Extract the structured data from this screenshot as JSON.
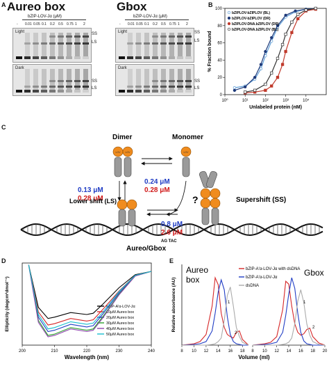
{
  "panelA": {
    "letter": "A",
    "aureo_title": "Aureo box",
    "gbox_title": "Gbox",
    "conc_label": "bZIP-LOV-Jα (μM)",
    "lanes": [
      "-",
      "0.01",
      "0.05",
      "0.1",
      "0.2",
      "0.5",
      "0.75",
      "1",
      "2"
    ],
    "light": "Light",
    "dark": "Dark",
    "ss": "SS",
    "ls": "LS"
  },
  "panelB": {
    "letter": "B",
    "chart_data": {
      "type": "scatter",
      "xlabel": "Unlabeled protein (nM)",
      "ylabel": "% Fraction bound",
      "xscale": "log",
      "xlim": [
        1,
        100000
      ],
      "ylim": [
        0,
        100
      ],
      "xticks": [
        "10⁰",
        "10¹",
        "10²",
        "10³",
        "10⁴"
      ],
      "yticks": [
        "0",
        "20",
        "40",
        "60",
        "80",
        "100"
      ],
      "legend_placement": "top-left",
      "series": [
        {
          "name": "bZIPLOV-bZIPLOV (BL)",
          "color": "#5b9bd5",
          "marker": "open-circle",
          "x": [
            3,
            10,
            30,
            60,
            100,
            200,
            400,
            1000,
            3000,
            10000,
            30000
          ],
          "y": [
            8,
            10,
            18,
            30,
            45,
            62,
            78,
            90,
            96,
            99,
            100
          ]
        },
        {
          "name": "bZIPLOV-bZIPLOV (DR)",
          "color": "#1f3a7a",
          "marker": "filled-circle",
          "x": [
            3,
            10,
            30,
            60,
            100,
            200,
            400,
            1000,
            3000,
            10000,
            30000
          ],
          "y": [
            5,
            9,
            20,
            35,
            50,
            66,
            80,
            92,
            97,
            99,
            100
          ]
        },
        {
          "name": "bZIPLOV-DNA.bZIPLOV (DR)",
          "color": "#c0392b",
          "marker": "filled-square",
          "x": [
            10,
            30,
            100,
            200,
            400,
            700,
            1000,
            2000,
            4000,
            10000,
            30000
          ],
          "y": [
            2,
            3,
            5,
            10,
            20,
            35,
            50,
            72,
            88,
            97,
            99
          ]
        },
        {
          "name": "bZIPLOV-DNA.bZIPLOV (BL)",
          "color": "#333333",
          "marker": "open-square",
          "x": [
            10,
            30,
            100,
            200,
            400,
            700,
            1000,
            2000,
            4000,
            10000,
            30000
          ],
          "y": [
            3,
            5,
            12,
            25,
            42,
            58,
            70,
            84,
            93,
            98,
            100
          ]
        }
      ]
    }
  },
  "panelC": {
    "letter": "C",
    "dimer": "Dimer",
    "monomer": "Monomer",
    "k1_blue": "0.24 μM",
    "k1_red": "0.28 μM",
    "k2_blue": "0.13 μM",
    "k2_red": "0.28 μM",
    "k3_blue": "0.8 μM",
    "k3_red": "2.6 μM",
    "lower_shift": "Lower shift (LS)",
    "supershift": "Supershift (SS)",
    "question": "?",
    "dna_label": "Aureo/Gbox",
    "lov": "LOV",
    "bzip": "bZIP",
    "dna_seq": "AG TAC",
    "colors": {
      "blue": "#1f3cc4",
      "red": "#d01a1a",
      "lov": "#f08c1e"
    }
  },
  "panelD": {
    "letter": "D",
    "chart_data": {
      "type": "line",
      "xlabel": "Wavelength (nm)",
      "ylabel": "Ellipticity (degcm²dmol⁻¹)",
      "xlim": [
        200,
        240
      ],
      "xticks": [
        "200",
        "210",
        "220",
        "230",
        "240"
      ],
      "legend_placement": "bottom-right",
      "series": [
        {
          "name": "bZIP-A'α-LOV-Jα",
          "color": "#000000",
          "x": [
            202,
            205,
            208,
            210,
            215,
            220,
            222,
            225,
            230,
            235,
            240
          ],
          "y": [
            0.1,
            -0.55,
            -0.72,
            -0.7,
            -0.63,
            -0.66,
            -0.64,
            -0.5,
            -0.25,
            -0.05,
            0
          ]
        },
        {
          "name": "10μM Aureo box",
          "color": "#d62728",
          "x": [
            202,
            205,
            208,
            210,
            215,
            220,
            222,
            225,
            230,
            235,
            240
          ],
          "y": [
            0.1,
            -0.62,
            -0.82,
            -0.8,
            -0.72,
            -0.76,
            -0.74,
            -0.58,
            -0.3,
            -0.06,
            0
          ]
        },
        {
          "name": "20μM Aureo box",
          "color": "#1f3cc4",
          "x": [
            202,
            205,
            208,
            210,
            215,
            220,
            222,
            225,
            230,
            235,
            240
          ],
          "y": [
            0.1,
            -0.7,
            -0.92,
            -0.9,
            -0.81,
            -0.85,
            -0.83,
            -0.65,
            -0.33,
            -0.07,
            0
          ]
        },
        {
          "name": "30μM Aureo box",
          "color": "#2ca02c",
          "x": [
            202,
            205,
            208,
            210,
            215,
            220,
            222,
            225,
            230,
            235,
            240
          ],
          "y": [
            0.1,
            -0.75,
            -0.98,
            -0.96,
            -0.86,
            -0.9,
            -0.88,
            -0.69,
            -0.35,
            -0.07,
            0
          ]
        },
        {
          "name": "40μM Aureo box",
          "color": "#8e44ad",
          "x": [
            202,
            205,
            208,
            210,
            215,
            220,
            222,
            225,
            230,
            235,
            240
          ],
          "y": [
            0.1,
            -0.78,
            -1.0,
            -0.98,
            -0.88,
            -0.92,
            -0.9,
            -0.71,
            -0.36,
            -0.07,
            0
          ]
        },
        {
          "name": "50μM Aureo box",
          "color": "#17becf",
          "x": [
            202,
            205,
            208,
            210,
            215,
            220,
            222,
            225,
            230,
            235,
            240
          ],
          "y": [
            0.1,
            -0.66,
            -0.88,
            -0.86,
            -0.77,
            -0.81,
            -0.79,
            -0.62,
            -0.31,
            -0.06,
            0
          ]
        }
      ]
    }
  },
  "panelE": {
    "letter": "E",
    "aureo_label_1": "Aureo",
    "aureo_label_2": "box",
    "gbox_label": "Gbox",
    "peak1": "1",
    "peak2": "2",
    "chart_data": {
      "type": "line",
      "xlabel": "Volume (ml)",
      "ylabel": "Relative absorbance (AU)",
      "xticks": [
        "8",
        "10",
        "12",
        "14",
        "16",
        "18",
        "8",
        "10",
        "12",
        "14",
        "16",
        "18",
        "20"
      ],
      "legend_placement": "top-center",
      "series": [
        {
          "name": "bZIP-A'α-LOV-Jα with dsDNA",
          "color": "#d62728"
        },
        {
          "name": "bZIP-A'α-LOV-Jα",
          "color": "#1f3cc4"
        },
        {
          "name": "dsDNA",
          "color": "#aaaaaa"
        }
      ],
      "aureo": {
        "x": [
          8,
          10,
          11,
          12,
          13,
          13.5,
          14,
          14.5,
          15,
          15.5,
          16,
          16.5,
          17,
          17.5,
          18,
          19
        ],
        "with_dsDNA": [
          0,
          0.02,
          0.05,
          0.15,
          0.55,
          0.95,
          0.85,
          0.45,
          0.25,
          0.15,
          0.12,
          0.1,
          0.18,
          0.2,
          0.08,
          0
        ],
        "protein": [
          0,
          0.01,
          0.02,
          0.05,
          0.2,
          0.45,
          0.75,
          0.92,
          0.78,
          0.4,
          0.15,
          0.05,
          0.02,
          0.01,
          0,
          0
        ],
        "dsDNA": [
          0,
          0,
          0,
          0,
          0.01,
          0.02,
          0.05,
          0.1,
          0.35,
          0.7,
          0.82,
          0.55,
          0.25,
          0.12,
          0.04,
          0
        ]
      },
      "gbox": {
        "x": [
          8,
          10,
          11,
          12,
          13,
          13.5,
          14,
          14.5,
          15,
          15.5,
          16,
          16.5,
          17,
          17.5,
          18,
          19,
          20
        ],
        "with_dsDNA": [
          0,
          0.02,
          0.04,
          0.12,
          0.5,
          0.9,
          0.86,
          0.55,
          0.3,
          0.18,
          0.14,
          0.16,
          0.22,
          0.24,
          0.12,
          0.03,
          0
        ],
        "protein": [
          0,
          0.01,
          0.02,
          0.04,
          0.18,
          0.42,
          0.72,
          0.95,
          0.8,
          0.45,
          0.18,
          0.06,
          0.02,
          0.01,
          0,
          0,
          0
        ],
        "dsDNA": [
          0,
          0,
          0,
          0,
          0.01,
          0.02,
          0.04,
          0.1,
          0.3,
          0.62,
          0.78,
          0.6,
          0.3,
          0.14,
          0.05,
          0.01,
          0
        ]
      }
    }
  }
}
